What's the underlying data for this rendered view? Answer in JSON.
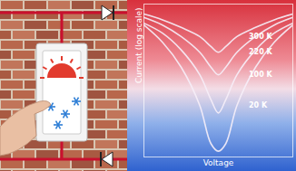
{
  "chart_data": {
    "type": "line",
    "xlabel": "Voltage",
    "ylabel": "Current (log scale)",
    "log": "y",
    "tick_labels": false,
    "x": [
      -1,
      -0.75,
      -0.5,
      -0.25,
      -0.1,
      0,
      0.1,
      0.25,
      0.5,
      0.75,
      1
    ],
    "xlim": [
      -1,
      1
    ],
    "ylim": [
      1e-12,
      0.0001
    ],
    "xticks": [],
    "yticks": [],
    "series": [
      {
        "name": "300 K",
        "color": "#f6eef8",
        "values": [
          3e-05,
          1.5e-05,
          6e-06,
          2e-06,
          6e-07,
          3e-07,
          6e-07,
          2e-06,
          6e-06,
          1.5e-05,
          3e-05
        ]
      },
      {
        "name": "220 K",
        "color": "#f6eef8",
        "values": [
          2e-05,
          8e-06,
          2e-06,
          3e-07,
          5e-08,
          2e-08,
          5e-08,
          3e-07,
          2e-06,
          8e-06,
          2e-05
        ]
      },
      {
        "name": "100 K",
        "color": "#f6eef8",
        "values": [
          1e-05,
          3e-06,
          4e-07,
          2e-08,
          1e-09,
          2e-10,
          1e-09,
          2e-08,
          4e-07,
          3e-06,
          1e-05
        ]
      },
      {
        "name": "20 K",
        "color": "#f6eef8",
        "values": [
          8e-06,
          1e-06,
          5e-08,
          5e-10,
          5e-12,
          2e-12,
          5e-12,
          5e-10,
          5e-08,
          1e-06,
          8e-06
        ]
      }
    ]
  }
}
